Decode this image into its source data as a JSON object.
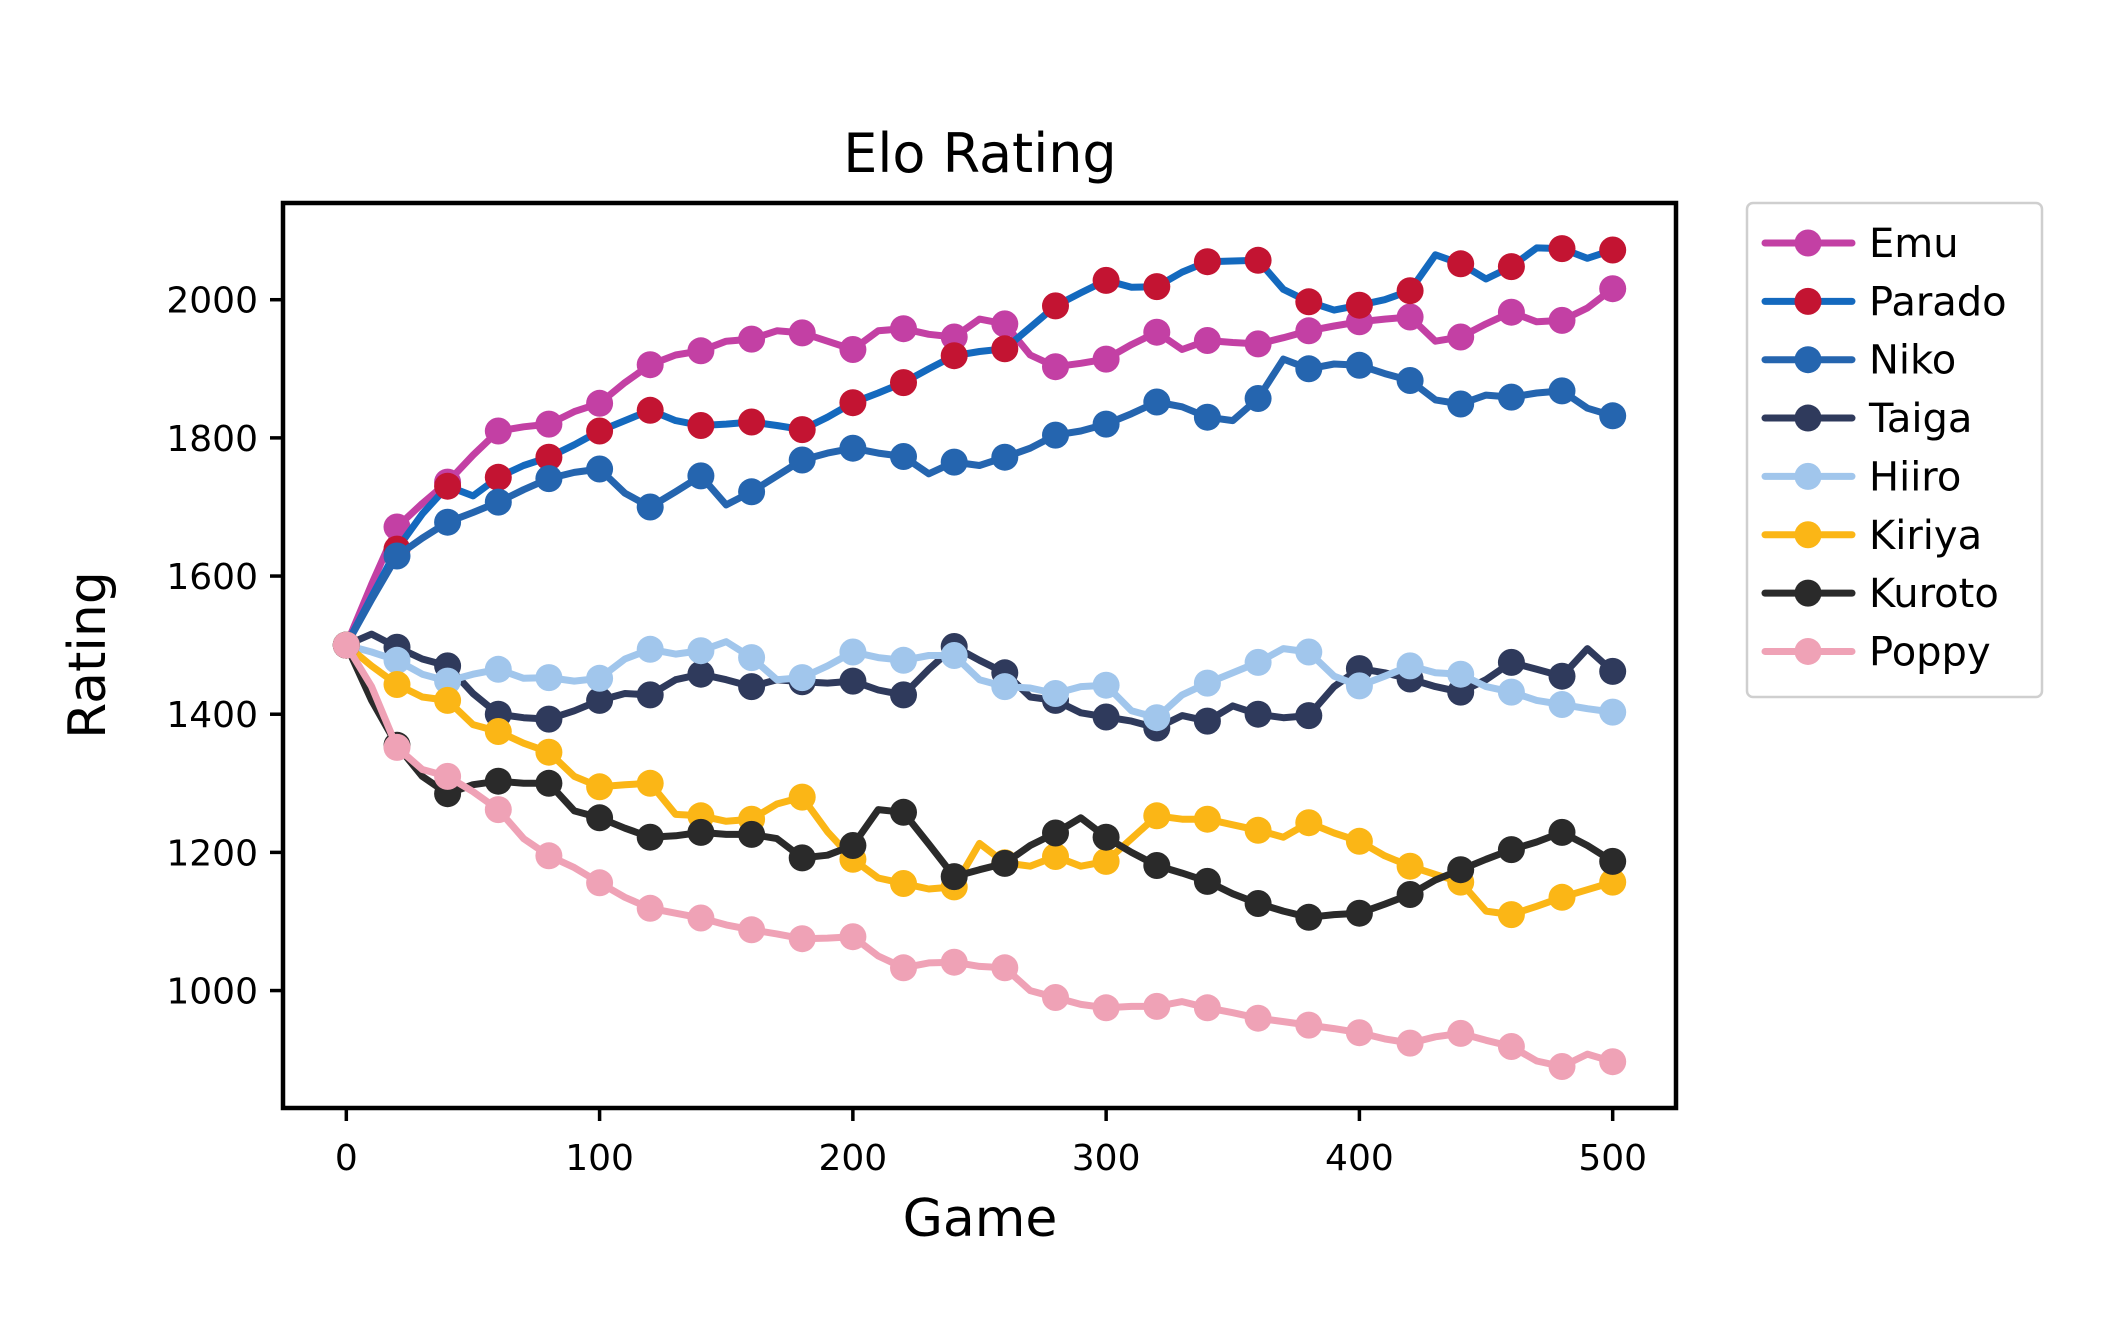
{
  "chart_data": {
    "type": "line",
    "title": "Elo Rating",
    "xlabel": "Game",
    "ylabel": "Rating",
    "xticks": [
      "0",
      "100",
      "200",
      "300",
      "400",
      "500"
    ],
    "xtick_values": [
      0,
      100,
      200,
      300,
      400,
      500
    ],
    "yticks": [
      "1000",
      "1200",
      "1400",
      "1600",
      "1800",
      "2000"
    ],
    "ytick_values": [
      1000,
      1200,
      1400,
      1600,
      1800,
      2000
    ],
    "xlim": [
      -25,
      525
    ],
    "ylim": [
      830,
      2140
    ],
    "grid": false,
    "legend_position": "outside-right",
    "marker_every": 2,
    "x": [
      0,
      10,
      20,
      30,
      40,
      50,
      60,
      70,
      80,
      90,
      100,
      110,
      120,
      130,
      140,
      150,
      160,
      170,
      180,
      190,
      200,
      210,
      220,
      230,
      240,
      250,
      260,
      270,
      280,
      290,
      300,
      310,
      320,
      330,
      340,
      350,
      360,
      370,
      380,
      390,
      400,
      410,
      420,
      430,
      440,
      450,
      460,
      470,
      480,
      490,
      500
    ],
    "series": [
      {
        "name": "Emu",
        "line_color": "#C340A4",
        "marker_color": "#C340A4",
        "values": [
          1500,
          1588,
          1671,
          1705,
          1736,
          1775,
          1810,
          1816,
          1820,
          1838,
          1850,
          1880,
          1906,
          1920,
          1926,
          1940,
          1943,
          1955,
          1952,
          1940,
          1928,
          1955,
          1958,
          1950,
          1946,
          1972,
          1965,
          1920,
          1903,
          1908,
          1914,
          1935,
          1953,
          1928,
          1941,
          1938,
          1936,
          1945,
          1955,
          1962,
          1968,
          1972,
          1975,
          1940,
          1946,
          1965,
          1982,
          1968,
          1970,
          1988,
          2016
        ]
      },
      {
        "name": "Parado",
        "line_color": "#1469BE",
        "marker_color": "#C31432",
        "values": [
          1500,
          1570,
          1639,
          1690,
          1730,
          1716,
          1743,
          1760,
          1772,
          1790,
          1810,
          1825,
          1840,
          1825,
          1818,
          1820,
          1823,
          1818,
          1812,
          1830,
          1851,
          1865,
          1880,
          1900,
          1919,
          1925,
          1929,
          1960,
          1991,
          2010,
          2028,
          2018,
          2019,
          2040,
          2055,
          2056,
          2057,
          2015,
          1997,
          1985,
          1992,
          2000,
          2013,
          2065,
          2052,
          2030,
          2048,
          2075,
          2074,
          2060,
          2072
        ]
      },
      {
        "name": "Niko",
        "line_color": "#2565AF",
        "marker_color": "#2565AF",
        "values": [
          1500,
          1566,
          1629,
          1655,
          1678,
          1692,
          1707,
          1725,
          1741,
          1750,
          1755,
          1720,
          1700,
          1722,
          1745,
          1703,
          1722,
          1745,
          1768,
          1778,
          1785,
          1778,
          1773,
          1748,
          1765,
          1760,
          1772,
          1785,
          1804,
          1810,
          1820,
          1835,
          1852,
          1845,
          1830,
          1825,
          1857,
          1914,
          1900,
          1907,
          1905,
          1893,
          1883,
          1855,
          1849,
          1862,
          1859,
          1865,
          1868,
          1843,
          1832
        ]
      },
      {
        "name": "Taiga",
        "line_color": "#2F3A5C",
        "marker_color": "#2F3A5C",
        "values": [
          1500,
          1516,
          1497,
          1480,
          1470,
          1430,
          1400,
          1395,
          1393,
          1405,
          1420,
          1430,
          1428,
          1450,
          1458,
          1450,
          1440,
          1450,
          1447,
          1445,
          1448,
          1435,
          1428,
          1465,
          1498,
          1478,
          1460,
          1425,
          1420,
          1402,
          1396,
          1390,
          1380,
          1398,
          1390,
          1412,
          1400,
          1395,
          1398,
          1440,
          1466,
          1460,
          1451,
          1440,
          1432,
          1450,
          1475,
          1465,
          1455,
          1495,
          1462
        ]
      },
      {
        "name": "Hiiro",
        "line_color": "#A1C6EC",
        "marker_color": "#A1C6EC",
        "values": [
          1500,
          1490,
          1478,
          1458,
          1448,
          1458,
          1465,
          1452,
          1453,
          1448,
          1452,
          1480,
          1494,
          1487,
          1492,
          1505,
          1482,
          1450,
          1453,
          1470,
          1490,
          1482,
          1478,
          1485,
          1485,
          1450,
          1440,
          1438,
          1430,
          1440,
          1442,
          1405,
          1395,
          1428,
          1445,
          1460,
          1475,
          1495,
          1490,
          1455,
          1441,
          1455,
          1470,
          1460,
          1458,
          1440,
          1432,
          1420,
          1414,
          1408,
          1403
        ]
      },
      {
        "name": "Kiriya",
        "line_color": "#FBB616",
        "marker_color": "#FBB616",
        "values": [
          1500,
          1470,
          1443,
          1425,
          1420,
          1385,
          1375,
          1358,
          1345,
          1310,
          1295,
          1298,
          1300,
          1255,
          1253,
          1245,
          1248,
          1270,
          1280,
          1230,
          1190,
          1163,
          1155,
          1147,
          1150,
          1213,
          1185,
          1180,
          1194,
          1180,
          1187,
          1220,
          1253,
          1248,
          1248,
          1240,
          1232,
          1222,
          1243,
          1228,
          1216,
          1195,
          1180,
          1168,
          1157,
          1115,
          1110,
          1122,
          1135,
          1146,
          1157
        ]
      },
      {
        "name": "Kuroto",
        "line_color": "#2A2A2A",
        "marker_color": "#2A2A2A",
        "values": [
          1500,
          1420,
          1355,
          1310,
          1285,
          1298,
          1303,
          1300,
          1300,
          1260,
          1250,
          1235,
          1222,
          1224,
          1229,
          1226,
          1226,
          1220,
          1192,
          1196,
          1210,
          1262,
          1258,
          1212,
          1165,
          1175,
          1184,
          1210,
          1228,
          1250,
          1222,
          1200,
          1181,
          1170,
          1158,
          1140,
          1126,
          1115,
          1106,
          1110,
          1112,
          1125,
          1139,
          1160,
          1175,
          1190,
          1204,
          1215,
          1229,
          1210,
          1187
        ]
      },
      {
        "name": "Poppy",
        "line_color": "#EFA2B6",
        "marker_color": "#EFA2B6",
        "values": [
          1500,
          1440,
          1352,
          1320,
          1310,
          1288,
          1262,
          1220,
          1195,
          1178,
          1156,
          1135,
          1119,
          1112,
          1105,
          1095,
          1088,
          1082,
          1075,
          1076,
          1078,
          1050,
          1033,
          1040,
          1041,
          1035,
          1033,
          1000,
          990,
          980,
          975,
          977,
          977,
          984,
          975,
          968,
          960,
          955,
          950,
          945,
          939,
          930,
          924,
          933,
          938,
          928,
          919,
          898,
          890,
          908,
          897
        ]
      }
    ]
  }
}
